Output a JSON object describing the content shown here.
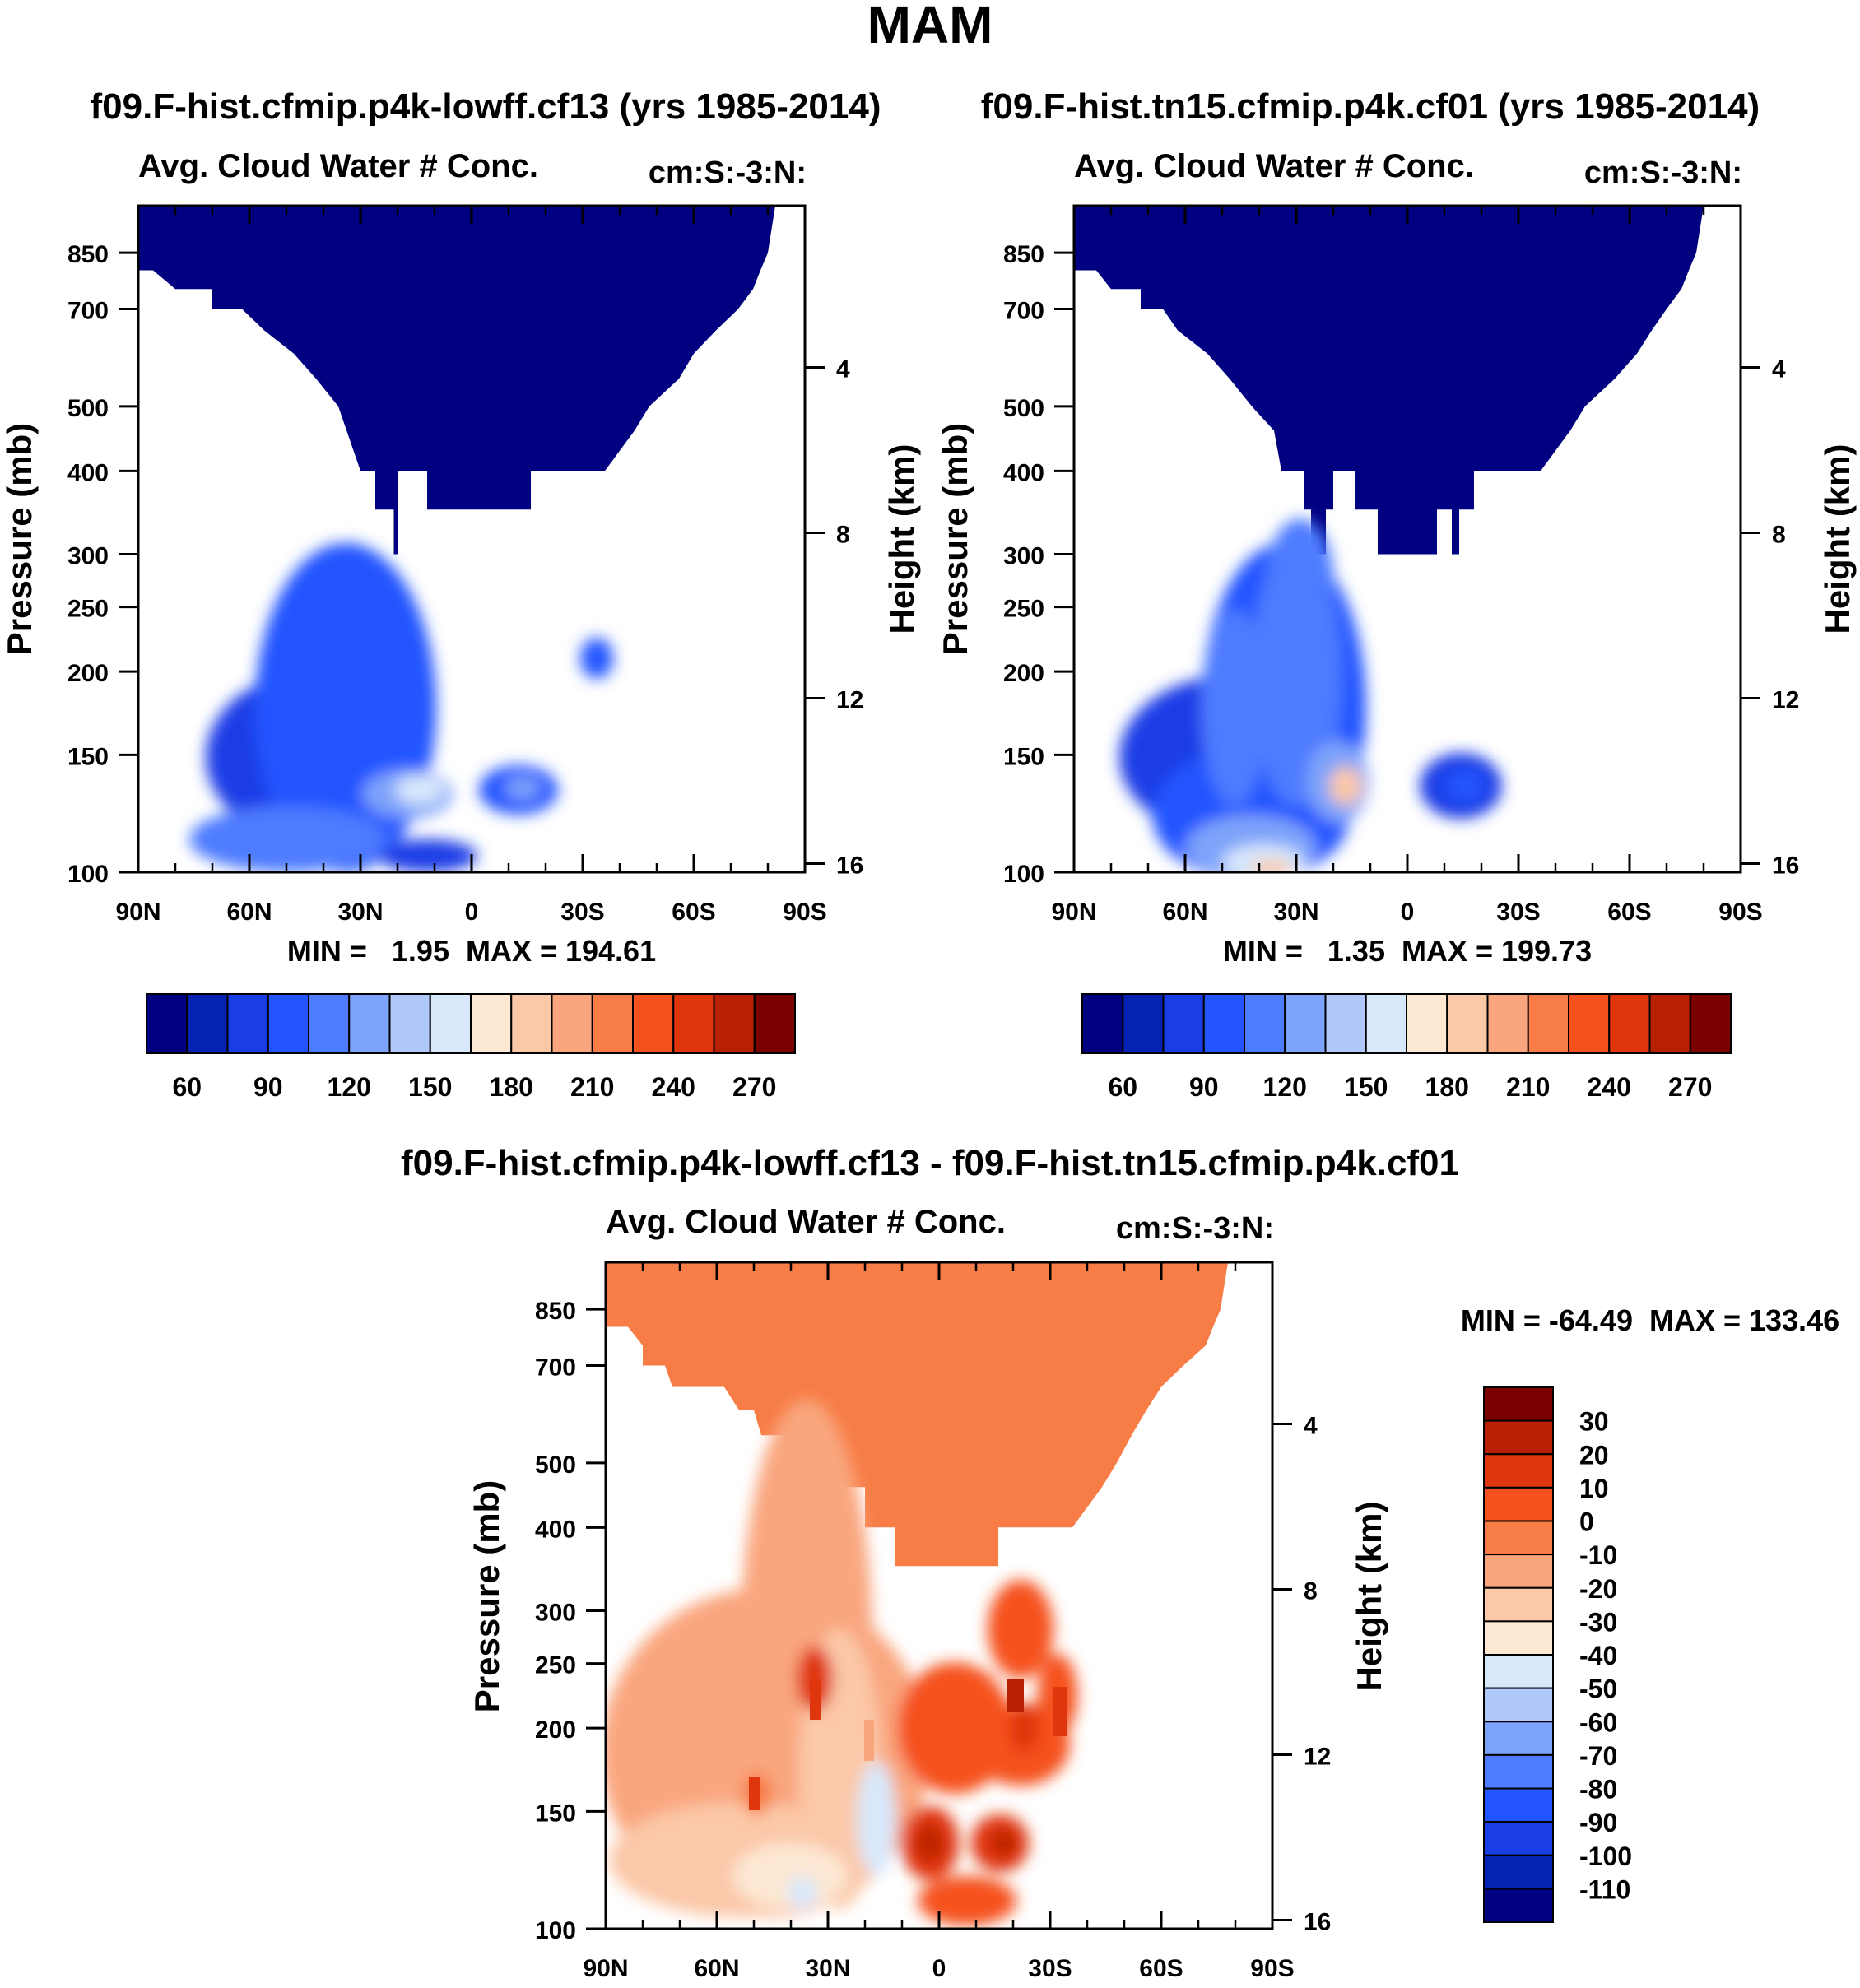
{
  "page": {
    "title": "MAM"
  },
  "palette": {
    "blue_to_red": [
      "#000080",
      "#0522b3",
      "#1a3ee6",
      "#2255ff",
      "#4d7cff",
      "#7ea3fa",
      "#b0c8fa",
      "#d8e8fb",
      "#fde8d4",
      "#fbc8a8",
      "#f9a67e",
      "#f77c45",
      "#f5511e",
      "#e0360e",
      "#b82004",
      "#7a0000"
    ],
    "diff_levels_desc": [
      "#7a0000",
      "#b82004",
      "#e0360e",
      "#f5511e",
      "#f77c45",
      "#f9a67e",
      "#fbc8a8",
      "#fde8d4",
      "#d8e8fb",
      "#b0c8fa",
      "#7ea3fa",
      "#4d7cff",
      "#2255ff",
      "#1a3ee6",
      "#0522b3",
      "#000080"
    ]
  },
  "chart_data": [
    {
      "id": "panel1",
      "type": "heatmap",
      "title": "f09.F-hist.cfmip.p4k-lowff.cf13 (yrs 1985-2014)",
      "subtitle_left": "Avg. Cloud Water # Conc.",
      "subtitle_right": "cm:S:-3:N:",
      "ylabel": "Pressure (mb)",
      "ylabel_right": "Height (km)",
      "x_ticks": [
        "90N",
        "60N",
        "30N",
        "0",
        "30S",
        "60S",
        "90S"
      ],
      "x_tick_values": [
        90,
        60,
        30,
        0,
        -30,
        -60,
        -90
      ],
      "y_ticks": [
        100,
        150,
        200,
        250,
        300,
        400,
        500,
        700,
        850
      ],
      "y_right_ticks": [
        16,
        12,
        8,
        4
      ],
      "xlim": [
        90,
        -90
      ],
      "ylim": [
        1000,
        100
      ],
      "stats": "MIN =   1.95  MAX = 194.61",
      "colorbar_labels": [
        "60",
        "90",
        "120",
        "150",
        "180",
        "210",
        "240",
        "270"
      ],
      "colorbar_levels": [
        60,
        90,
        120,
        150,
        180,
        210,
        240,
        270
      ],
      "top_profile": [
        [
          -90,
          1000
        ],
        [
          -82,
          1000
        ],
        [
          -80,
          850
        ],
        [
          -78,
          800
        ],
        [
          -76,
          750
        ],
        [
          -72,
          700
        ],
        [
          -66,
          650
        ],
        [
          -60,
          600
        ],
        [
          -56,
          550
        ],
        [
          -48,
          500
        ],
        [
          -44,
          460
        ],
        [
          -36,
          400
        ],
        [
          -16,
          400
        ],
        [
          -16,
          350
        ],
        [
          12,
          350
        ],
        [
          12,
          400
        ],
        [
          20,
          400
        ],
        [
          20,
          300
        ],
        [
          21,
          300
        ],
        [
          21,
          350
        ],
        [
          26,
          350
        ],
        [
          26,
          400
        ],
        [
          30,
          400
        ],
        [
          36,
          500
        ],
        [
          42,
          550
        ],
        [
          48,
          600
        ],
        [
          56,
          650
        ],
        [
          62,
          700
        ],
        [
          70,
          700
        ],
        [
          70,
          750
        ],
        [
          80,
          750
        ],
        [
          86,
          800
        ],
        [
          90,
          800
        ],
        [
          90,
          1000
        ]
      ]
    },
    {
      "id": "panel2",
      "type": "heatmap",
      "title": "f09.F-hist.tn15.cfmip.p4k.cf01 (yrs 1985-2014)",
      "subtitle_left": "Avg. Cloud Water # Conc.",
      "subtitle_right": "cm:S:-3:N:",
      "ylabel": "Pressure (mb)",
      "ylabel_right": "Height (km)",
      "x_ticks": [
        "90N",
        "60N",
        "30N",
        "0",
        "30S",
        "60S",
        "90S"
      ],
      "x_tick_values": [
        90,
        60,
        30,
        0,
        -30,
        -60,
        -90
      ],
      "y_ticks": [
        100,
        150,
        200,
        250,
        300,
        400,
        500,
        700,
        850
      ],
      "y_right_ticks": [
        16,
        12,
        8,
        4
      ],
      "xlim": [
        90,
        -90
      ],
      "ylim": [
        1000,
        100
      ],
      "stats": "MIN =   1.35  MAX = 199.73",
      "colorbar_labels": [
        "60",
        "90",
        "120",
        "150",
        "180",
        "210",
        "240",
        "270"
      ],
      "colorbar_levels": [
        60,
        90,
        120,
        150,
        180,
        210,
        240,
        270
      ],
      "top_profile": [
        [
          -90,
          1000
        ],
        [
          -80,
          1000
        ],
        [
          -78,
          850
        ],
        [
          -76,
          800
        ],
        [
          -74,
          750
        ],
        [
          -70,
          700
        ],
        [
          -66,
          650
        ],
        [
          -62,
          600
        ],
        [
          -56,
          550
        ],
        [
          -48,
          500
        ],
        [
          -44,
          460
        ],
        [
          -36,
          400
        ],
        [
          -18,
          400
        ],
        [
          -18,
          350
        ],
        [
          -14,
          350
        ],
        [
          -14,
          300
        ],
        [
          -12,
          300
        ],
        [
          -12,
          350
        ],
        [
          -8,
          350
        ],
        [
          -8,
          300
        ],
        [
          8,
          300
        ],
        [
          8,
          350
        ],
        [
          14,
          350
        ],
        [
          14,
          400
        ],
        [
          20,
          400
        ],
        [
          20,
          350
        ],
        [
          22,
          350
        ],
        [
          22,
          300
        ],
        [
          26,
          300
        ],
        [
          26,
          350
        ],
        [
          28,
          350
        ],
        [
          28,
          400
        ],
        [
          34,
          400
        ],
        [
          36,
          460
        ],
        [
          42,
          500
        ],
        [
          48,
          550
        ],
        [
          54,
          600
        ],
        [
          62,
          650
        ],
        [
          66,
          700
        ],
        [
          72,
          700
        ],
        [
          72,
          750
        ],
        [
          80,
          750
        ],
        [
          84,
          800
        ],
        [
          90,
          800
        ],
        [
          90,
          1000
        ]
      ]
    },
    {
      "id": "panel3",
      "type": "heatmap",
      "title": "f09.F-hist.cfmip.p4k-lowff.cf13 - f09.F-hist.tn15.cfmip.p4k.cf01",
      "subtitle_left": "Avg. Cloud Water # Conc.",
      "subtitle_right": "cm:S:-3:N:",
      "ylabel": "Pressure (mb)",
      "ylabel_right": "Height (km)",
      "x_ticks": [
        "90N",
        "60N",
        "30N",
        "0",
        "30S",
        "60S",
        "90S"
      ],
      "x_tick_values": [
        90,
        60,
        30,
        0,
        -30,
        -60,
        -90
      ],
      "y_ticks": [
        100,
        150,
        200,
        250,
        300,
        400,
        500,
        700,
        850
      ],
      "y_right_ticks": [
        16,
        12,
        8,
        4
      ],
      "xlim": [
        90,
        -90
      ],
      "ylim": [
        1000,
        100
      ],
      "stats": "MIN = -64.49  MAX = 133.46",
      "colorbar_labels": [
        "30",
        "20",
        "10",
        "0",
        "-10",
        "-20",
        "-30",
        "-40",
        "-50",
        "-60",
        "-70",
        "-80",
        "-90",
        "-100",
        "-110"
      ],
      "colorbar_levels": [
        30,
        20,
        10,
        0,
        -10,
        -20,
        -30,
        -40,
        -50,
        -60,
        -70,
        -80,
        -90,
        -100,
        -110
      ],
      "top_profile": [
        [
          -90,
          1000
        ],
        [
          -78,
          1000
        ],
        [
          -76,
          850
        ],
        [
          -74,
          800
        ],
        [
          -72,
          750
        ],
        [
          -66,
          700
        ],
        [
          -60,
          650
        ],
        [
          -56,
          600
        ],
        [
          -52,
          550
        ],
        [
          -48,
          500
        ],
        [
          -44,
          460
        ],
        [
          -36,
          400
        ],
        [
          -16,
          400
        ],
        [
          -16,
          350
        ],
        [
          12,
          350
        ],
        [
          12,
          400
        ],
        [
          20,
          400
        ],
        [
          20,
          460
        ],
        [
          28,
          460
        ],
        [
          30,
          500
        ],
        [
          36,
          500
        ],
        [
          36,
          550
        ],
        [
          48,
          550
        ],
        [
          50,
          600
        ],
        [
          54,
          600
        ],
        [
          58,
          650
        ],
        [
          72,
          650
        ],
        [
          74,
          700
        ],
        [
          80,
          700
        ],
        [
          80,
          750
        ],
        [
          84,
          800
        ],
        [
          90,
          800
        ],
        [
          90,
          1000
        ]
      ]
    }
  ]
}
